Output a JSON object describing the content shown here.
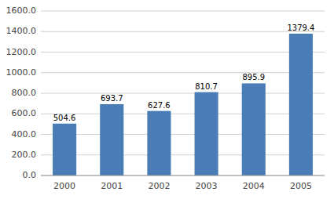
{
  "chart_data": {
    "type": "bar",
    "categories": [
      "2000",
      "2001",
      "2002",
      "2003",
      "2004",
      "2005"
    ],
    "values": [
      504.6,
      693.7,
      627.6,
      810.7,
      895.9,
      1379.4
    ],
    "color": "#4a7cb5",
    "ylim": [
      0,
      1600
    ],
    "yticks": [
      {
        "value": 0,
        "label": "0.0"
      },
      {
        "value": 200,
        "label": "200.0"
      },
      {
        "value": 400,
        "label": "400.0"
      },
      {
        "value": 600,
        "label": "600.0"
      },
      {
        "value": 800,
        "label": "800.0"
      },
      {
        "value": 1000,
        "label": "1000.0"
      },
      {
        "value": 1200,
        "label": "1200.0"
      },
      {
        "value": 1400,
        "label": "1400.0"
      },
      {
        "value": 1600,
        "label": "1600.0"
      }
    ],
    "grid": true,
    "data_labels": true
  }
}
